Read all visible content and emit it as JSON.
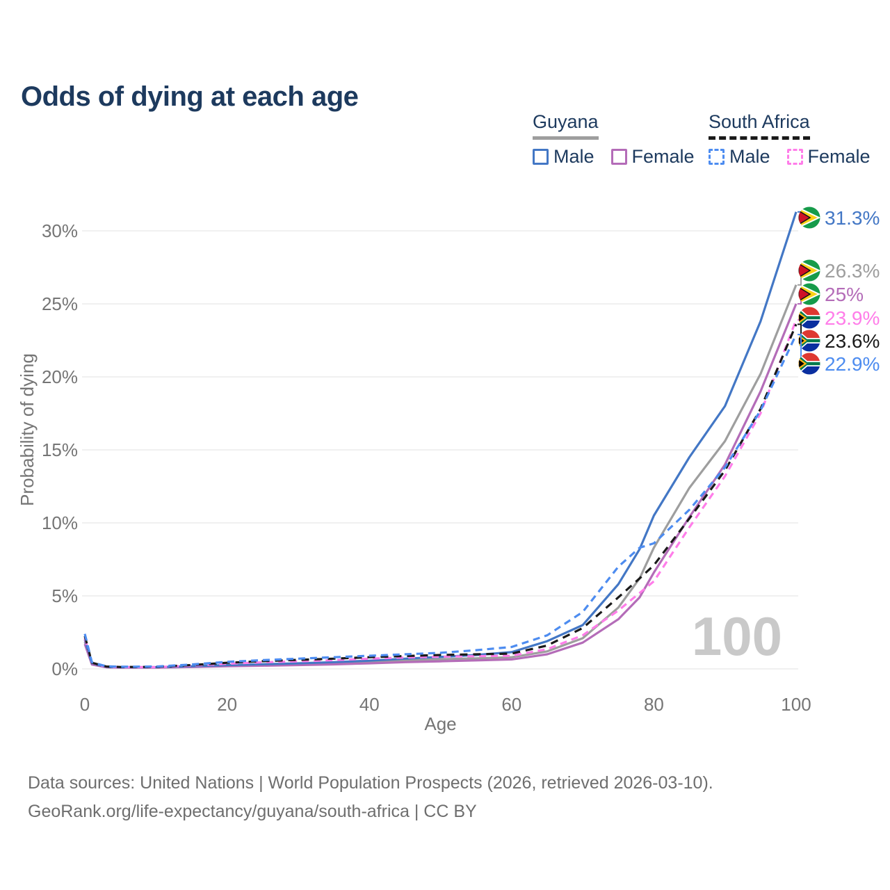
{
  "title": "Odds of dying at each age",
  "legend": {
    "groups": [
      {
        "label": "Guyana",
        "line_style": "solid",
        "line_color": "#9e9e9e",
        "items": [
          {
            "label": "Male",
            "color": "#4377c5",
            "dash": false
          },
          {
            "label": "Female",
            "color": "#b46cb8",
            "dash": false
          }
        ]
      },
      {
        "label": "South Africa",
        "line_style": "dashed",
        "line_color": "#1a1a1a",
        "items": [
          {
            "label": "Male",
            "color": "#4d8cf0",
            "dash": true
          },
          {
            "label": "Female",
            "color": "#ff7de9",
            "dash": true
          }
        ]
      }
    ]
  },
  "chart_data": {
    "type": "line",
    "title": "Odds of dying at each age",
    "xlabel": "Age",
    "ylabel": "Probability of dying",
    "xlim": [
      0,
      100
    ],
    "ylim_pct": [
      0,
      31.5
    ],
    "xticks": [
      0,
      20,
      40,
      60,
      80,
      100
    ],
    "ytick_labels": [
      "0%",
      "5%",
      "10%",
      "15%",
      "20%",
      "25%",
      "30%"
    ],
    "ytick_values": [
      0,
      5,
      10,
      15,
      20,
      25,
      30
    ],
    "grid": true,
    "watermark": "100",
    "ages": [
      0,
      1,
      3,
      5,
      10,
      15,
      20,
      25,
      30,
      35,
      40,
      45,
      50,
      55,
      60,
      65,
      70,
      75,
      78,
      80,
      85,
      90,
      95,
      100
    ],
    "series": [
      {
        "name": "Guyana Male",
        "country": "guyana",
        "color": "#4377c5",
        "dash": false,
        "end_label": "31.3%",
        "values": [
          2.0,
          0.38,
          0.14,
          0.12,
          0.12,
          0.18,
          0.26,
          0.32,
          0.38,
          0.46,
          0.56,
          0.7,
          0.82,
          0.95,
          1.15,
          1.9,
          3.0,
          5.8,
          8.2,
          10.5,
          14.5,
          18.0,
          23.8,
          31.3
        ]
      },
      {
        "name": "Guyana Both sexes",
        "country": "guyana",
        "color": "#9e9e9e",
        "dash": false,
        "end_label": "26.3%",
        "values": [
          1.85,
          0.34,
          0.12,
          0.1,
          0.1,
          0.15,
          0.22,
          0.27,
          0.32,
          0.38,
          0.46,
          0.56,
          0.66,
          0.72,
          0.8,
          1.2,
          2.1,
          4.2,
          6.2,
          8.3,
          12.4,
          15.6,
          20.2,
          26.3
        ]
      },
      {
        "name": "Guyana Female",
        "country": "guyana",
        "color": "#b46cb8",
        "dash": false,
        "end_label": "25%",
        "values": [
          1.7,
          0.3,
          0.11,
          0.09,
          0.09,
          0.13,
          0.18,
          0.22,
          0.26,
          0.31,
          0.38,
          0.46,
          0.52,
          0.58,
          0.65,
          1.0,
          1.8,
          3.4,
          4.9,
          6.6,
          10.4,
          14.0,
          19.0,
          25.0
        ]
      },
      {
        "name": "South Africa Female",
        "country": "south-africa",
        "color": "#ff7de9",
        "dash": true,
        "end_label": "23.9%",
        "values": [
          2.1,
          0.4,
          0.15,
          0.12,
          0.12,
          0.22,
          0.35,
          0.45,
          0.52,
          0.6,
          0.7,
          0.78,
          0.84,
          0.87,
          0.9,
          1.35,
          2.3,
          4.0,
          5.2,
          6.0,
          9.7,
          13.2,
          17.5,
          23.9
        ]
      },
      {
        "name": "South Africa Both sexes",
        "country": "south-africa",
        "color": "#1a1a1a",
        "dash": true,
        "end_label": "23.6%",
        "values": [
          2.25,
          0.42,
          0.16,
          0.13,
          0.14,
          0.26,
          0.42,
          0.53,
          0.62,
          0.7,
          0.8,
          0.88,
          0.95,
          1.0,
          1.05,
          1.6,
          2.8,
          4.9,
          6.2,
          7.1,
          10.3,
          13.6,
          17.8,
          23.6
        ]
      },
      {
        "name": "South Africa Male",
        "country": "south-africa",
        "color": "#4d8cf0",
        "dash": true,
        "end_label": "22.9%",
        "values": [
          2.4,
          0.45,
          0.18,
          0.15,
          0.16,
          0.3,
          0.48,
          0.6,
          0.7,
          0.8,
          0.9,
          1.0,
          1.1,
          1.28,
          1.5,
          2.3,
          3.9,
          7.0,
          8.3,
          8.6,
          10.9,
          13.8,
          17.7,
          22.9
        ]
      }
    ]
  },
  "footer": {
    "line1": "Data sources: United Nations | World Population Prospects (2026, retrieved 2026-03-10).",
    "line2": "GeoRank.org/life-expectancy/guyana/south-africa | CC BY"
  }
}
